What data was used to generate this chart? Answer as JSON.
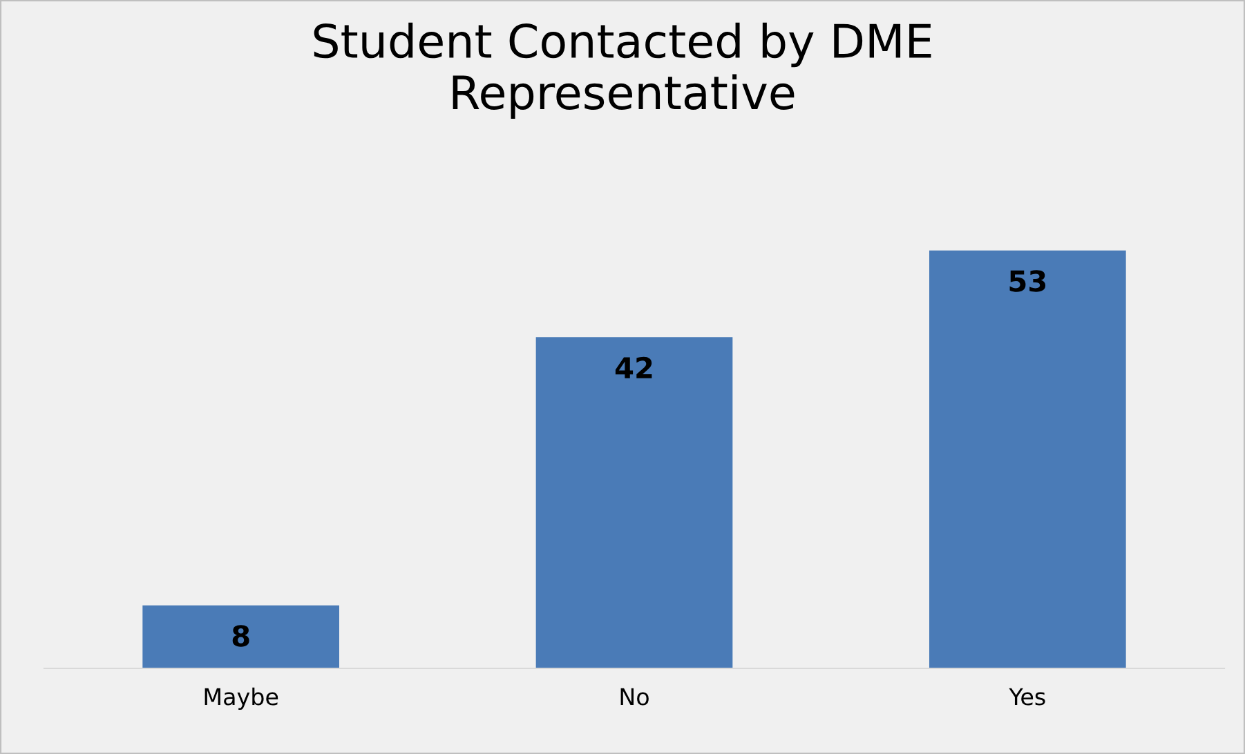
{
  "chart_data": {
    "type": "bar",
    "title": "Student Contacted by DME\nRepresentative",
    "categories": [
      "Maybe",
      "No",
      "Yes"
    ],
    "values": [
      8,
      42,
      53
    ],
    "color": "#4a7bb7",
    "data_labels": true
  }
}
